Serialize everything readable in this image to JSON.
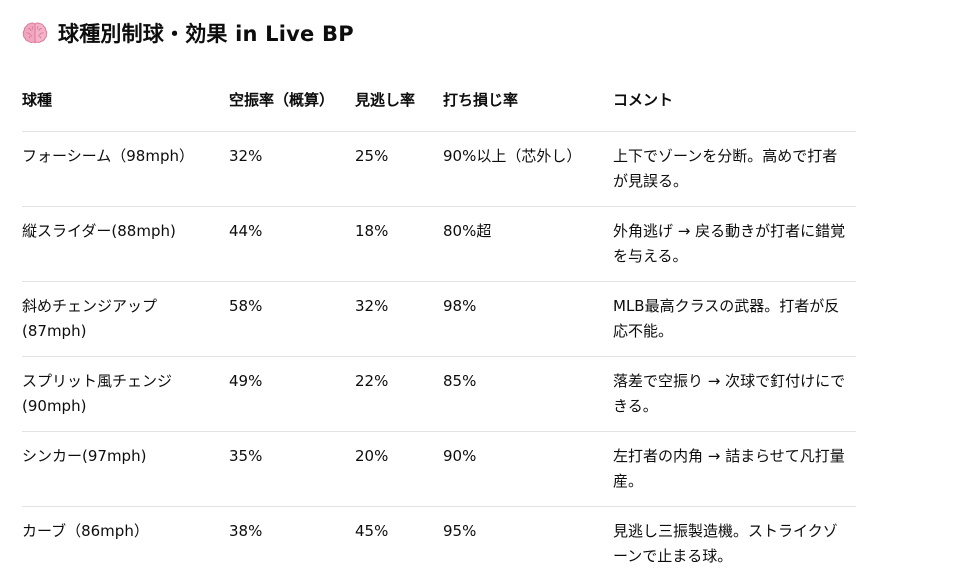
{
  "title": {
    "icon": "brain-icon",
    "text": "球種別制球・効果 in Live BP"
  },
  "table": {
    "headers": [
      "球種",
      "空振率（概算）",
      "見逃し率",
      "打ち損じ率",
      "コメント"
    ],
    "rows": [
      [
        "フォーシーム（98mph）",
        "32%",
        "25%",
        "90%以上（芯外し）",
        "上下でゾーンを分断。高めで打者が見誤る。"
      ],
      [
        "縦スライダー(88mph)",
        "44%",
        "18%",
        "80%超",
        "外角逃げ → 戻る動きが打者に錯覚を与える。"
      ],
      [
        "斜めチェンジアップ(87mph)",
        "58%",
        "32%",
        "98%",
        "MLB最高クラスの武器。打者が反応不能。"
      ],
      [
        "スプリット風チェンジ(90mph)",
        "49%",
        "22%",
        "85%",
        "落差で空振り → 次球で釘付けにできる。"
      ],
      [
        "シンカー(97mph)",
        "35%",
        "20%",
        "90%",
        "左打者の内角 → 詰まらせて凡打量産。"
      ],
      [
        "カーブ（86mph）",
        "38%",
        "45%",
        "95%",
        "見逃し三振製造機。ストライクゾーンで止まる球。"
      ]
    ]
  }
}
